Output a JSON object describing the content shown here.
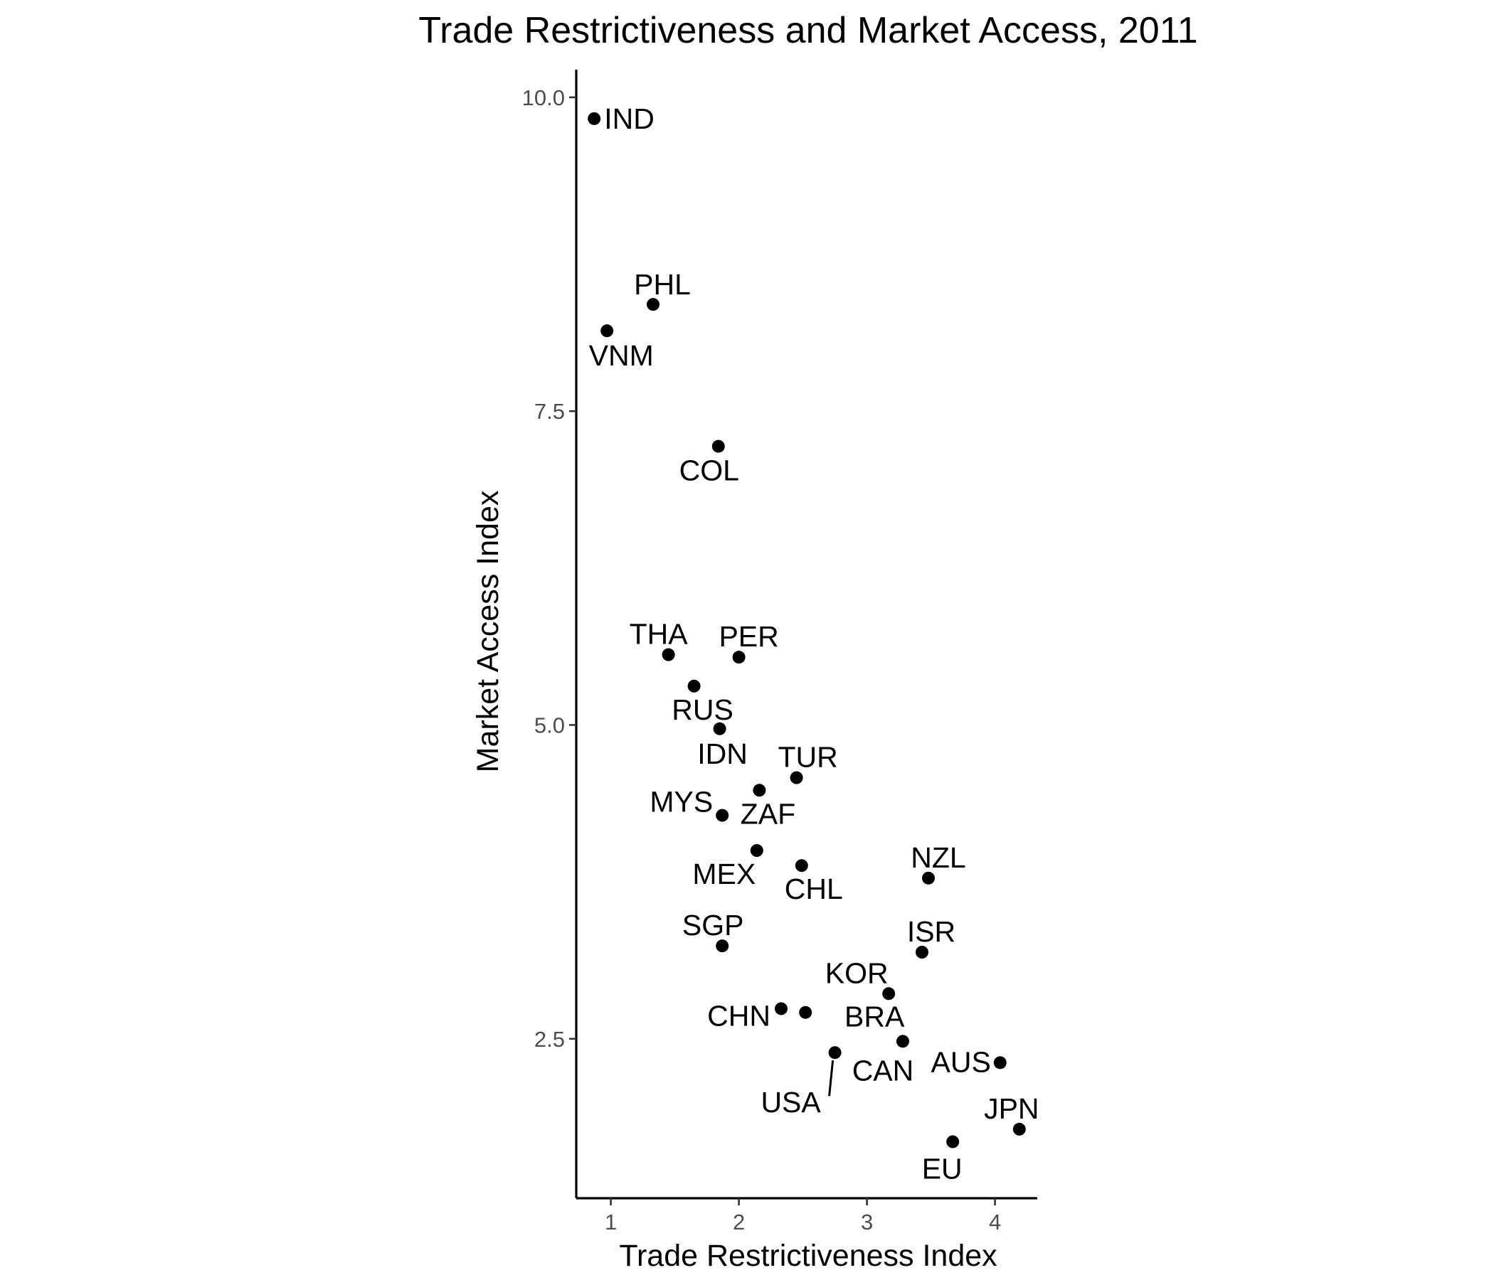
{
  "colors": {
    "point": "#000000",
    "text": "#000000",
    "tick_text": "#4d4d4d",
    "background": "#ffffff"
  },
  "chart_data": {
    "type": "scatter",
    "title": "Trade Restrictiveness and Market Access, 2011",
    "xlabel": "Trade Restrictiveness Index",
    "ylabel": "Market Access Index",
    "xlim": [
      0.73,
      4.33
    ],
    "ylim": [
      1.23,
      10.22
    ],
    "xticks": [
      1,
      2,
      3,
      4
    ],
    "xtick_labels": [
      "1",
      "2",
      "3",
      "4"
    ],
    "yticks": [
      2.5,
      5.0,
      7.5,
      10.0
    ],
    "ytick_labels": [
      "2.5",
      "5.0",
      "7.5",
      "10.0"
    ],
    "grid": false,
    "legend": "none",
    "points": [
      {
        "label": "IND",
        "x": 0.87,
        "y": 9.83
      },
      {
        "label": "PHL",
        "x": 1.33,
        "y": 8.35
      },
      {
        "label": "VNM",
        "x": 0.97,
        "y": 8.14
      },
      {
        "label": "COL",
        "x": 1.84,
        "y": 7.22
      },
      {
        "label": "THA",
        "x": 1.45,
        "y": 5.56
      },
      {
        "label": "PER",
        "x": 2.0,
        "y": 5.54
      },
      {
        "label": "RUS",
        "x": 1.65,
        "y": 5.31
      },
      {
        "label": "IDN",
        "x": 1.85,
        "y": 4.97
      },
      {
        "label": "TUR",
        "x": 2.45,
        "y": 4.58
      },
      {
        "label": "ZAF",
        "x": 2.16,
        "y": 4.48
      },
      {
        "label": "MYS",
        "x": 1.87,
        "y": 4.28
      },
      {
        "label": "MEX",
        "x": 2.14,
        "y": 4.0
      },
      {
        "label": "CHL",
        "x": 2.49,
        "y": 3.88
      },
      {
        "label": "NZL",
        "x": 3.48,
        "y": 3.78
      },
      {
        "label": "SGP",
        "x": 1.87,
        "y": 3.24
      },
      {
        "label": "ISR",
        "x": 3.43,
        "y": 3.19
      },
      {
        "label": "KOR",
        "x": 3.17,
        "y": 2.86
      },
      {
        "label": "CHN",
        "x": 2.33,
        "y": 2.74
      },
      {
        "label": "BRA",
        "x": 2.52,
        "y": 2.71
      },
      {
        "label": "CAN",
        "x": 3.28,
        "y": 2.48
      },
      {
        "label": "USA",
        "x": 2.75,
        "y": 2.39
      },
      {
        "label": "AUS",
        "x": 4.04,
        "y": 2.31
      },
      {
        "label": "JPN",
        "x": 4.19,
        "y": 1.78
      },
      {
        "label": "EU",
        "x": 3.67,
        "y": 1.68
      }
    ]
  }
}
